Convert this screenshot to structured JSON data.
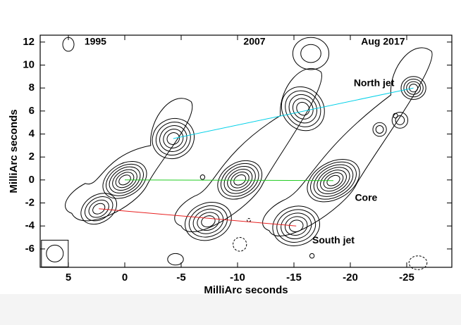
{
  "chart_data": {
    "type": "contour",
    "title": "",
    "xlabel": "MilliArc seconds",
    "ylabel": "MilliArc seconds",
    "xlim": [
      7.5,
      -29
    ],
    "ylim": [
      -7.6,
      12.6
    ],
    "xticks": [
      5,
      0,
      -5,
      -10,
      -15,
      -20,
      -25
    ],
    "xtick_labels": [
      "5",
      "0",
      "-5",
      "-10",
      "-15",
      "-20",
      "-25"
    ],
    "yticks": [
      12,
      10,
      8,
      6,
      4,
      2,
      0,
      -2,
      -4,
      -6
    ],
    "ytick_labels": [
      "12",
      "10",
      "8",
      "6",
      "4",
      "2",
      "0",
      "-2",
      "-4",
      "-6"
    ],
    "annotations": [
      {
        "text": "1995",
        "x": 2.6,
        "y": 12.0
      },
      {
        "text": "2007",
        "x": -11.5,
        "y": 12.0
      },
      {
        "text": "Aug 2017",
        "x": -22.9,
        "y": 12.0
      },
      {
        "text": "North jet",
        "x": -22.1,
        "y": 8.4
      },
      {
        "text": "Core",
        "x": -21.4,
        "y": -1.6
      },
      {
        "text": "South jet",
        "x": -18.5,
        "y": -5.3
      }
    ],
    "series": [
      {
        "name": "North jet track",
        "color": "#00d0e8",
        "points": [
          [
            -4.3,
            3.6
          ],
          [
            -25.6,
            8.0
          ]
        ]
      },
      {
        "name": "Core track",
        "color": "#22cc22",
        "points": [
          [
            0,
            0
          ],
          [
            -18.5,
            -0.05
          ]
        ]
      },
      {
        "name": "South jet track",
        "color": "#e82020",
        "points": [
          [
            2.3,
            -2.5
          ],
          [
            -15.2,
            -4.0
          ]
        ]
      }
    ],
    "epochs": [
      {
        "name": "1995",
        "components": [
          {
            "label": "core",
            "x": 0.0,
            "y": 0.0
          },
          {
            "label": "north",
            "x": -4.3,
            "y": 3.6
          },
          {
            "label": "south",
            "x": 2.3,
            "y": -2.5
          }
        ]
      },
      {
        "name": "2007",
        "components": [
          {
            "label": "core",
            "x": -10.2,
            "y": 0.0
          },
          {
            "label": "north",
            "x": -15.8,
            "y": 6.2
          },
          {
            "label": "south",
            "x": -7.4,
            "y": -3.6
          }
        ]
      },
      {
        "name": "Aug 2017",
        "components": [
          {
            "label": "core",
            "x": -18.5,
            "y": -0.05
          },
          {
            "label": "north",
            "x": -25.6,
            "y": 8.0
          },
          {
            "label": "south",
            "x": -15.2,
            "y": -4.0
          }
        ]
      }
    ],
    "contour_levels": 6,
    "negative_contours": "dashed",
    "beam": {
      "x": 6.2,
      "y": -6.4,
      "size": 1.2
    }
  }
}
